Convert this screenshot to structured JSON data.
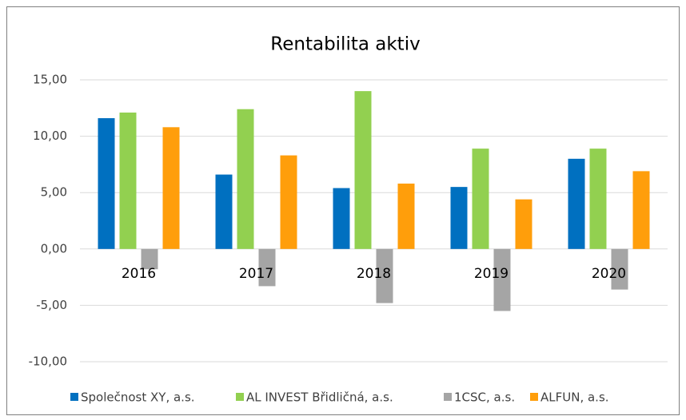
{
  "chart_data": {
    "type": "bar",
    "title": "Rentabilita aktiv",
    "categories": [
      "2016",
      "2017",
      "2018",
      "2019",
      "2020"
    ],
    "series": [
      {
        "name": "Společnost XY, a.s.",
        "color": "#0070c0",
        "values": [
          11.6,
          6.6,
          5.4,
          5.5,
          8.0
        ]
      },
      {
        "name": "AL INVEST Břidličná, a.s.",
        "color": "#92d050",
        "values": [
          12.1,
          12.4,
          14.0,
          8.9,
          8.9
        ]
      },
      {
        "name": "1CSC, a.s.",
        "color": "#a5a5a5",
        "values": [
          -1.8,
          -3.3,
          -4.8,
          -5.5,
          -3.6
        ]
      },
      {
        "name": "ALFUN, a.s.",
        "color": "#ff9e0b",
        "values": [
          10.8,
          8.3,
          5.8,
          4.4,
          6.9
        ]
      }
    ],
    "ylim": [
      -10,
      15
    ],
    "yticks": [
      {
        "value": -10,
        "label": "-10,00"
      },
      {
        "value": -5,
        "label": "-5,00"
      },
      {
        "value": 0,
        "label": "0,00"
      },
      {
        "value": 5,
        "label": "5,00"
      },
      {
        "value": 10,
        "label": "10,00"
      },
      {
        "value": 15,
        "label": "15,00"
      }
    ],
    "grid": true,
    "legend": "bottom"
  }
}
